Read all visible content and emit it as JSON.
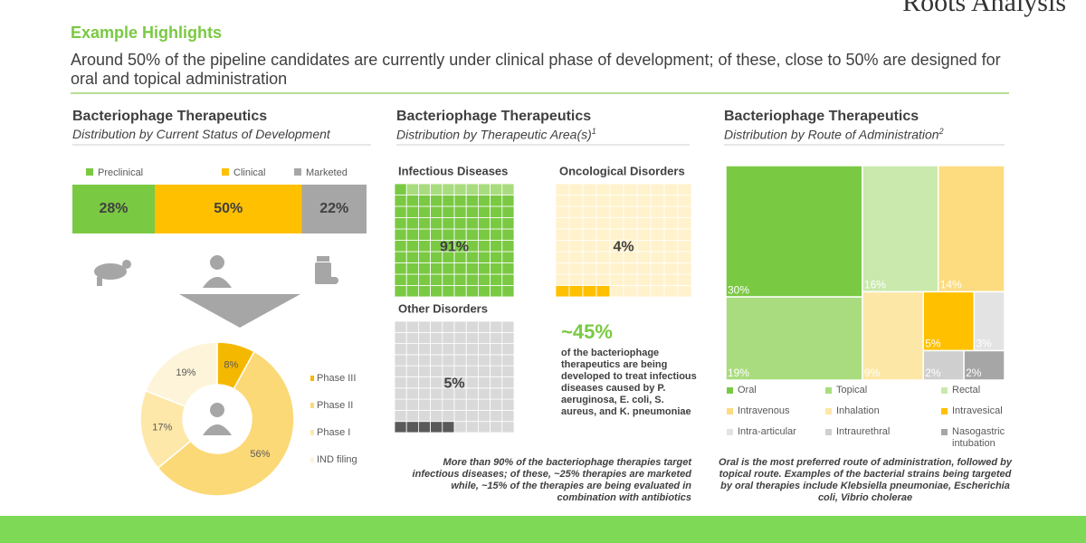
{
  "header": {
    "brand": "Roots Analysis",
    "title": "Example Highlights",
    "subtitle": "Around 50% of the pipeline candidates are currently under clinical phase of development; of these, close to 50% are designed for oral and topical administration"
  },
  "chart_data": [
    {
      "type": "stacked-bar",
      "title": "Bacteriophage Therapeutics",
      "subtitle": "Distribution by Current Status of Development",
      "categories": [
        "Preclinical",
        "Clinical",
        "Marketed"
      ],
      "values": [
        28,
        50,
        22
      ],
      "value_labels": [
        "28%",
        "50%",
        "22%"
      ],
      "colors": [
        "#7ac943",
        "#ffc000",
        "#a6a6a6"
      ]
    },
    {
      "type": "donut",
      "categories": [
        "Phase III",
        "Phase II",
        "Phase I",
        "IND filing"
      ],
      "values": [
        8,
        56,
        17,
        19
      ],
      "value_labels": [
        "8%",
        "56%",
        "17%",
        "19%"
      ],
      "colors": [
        "#f5b800",
        "#fcd977",
        "#fde8a9",
        "#fef4d9"
      ]
    },
    {
      "type": "waffle",
      "title": "Bacteriophage Therapeutics",
      "subtitle": "Distribution by Therapeutic Area(s)",
      "subtitle_note": "1",
      "categories": [
        "Infectious Diseases",
        "Oncological Disorders",
        "Other Disorders"
      ],
      "values": [
        91,
        4,
        5
      ],
      "value_labels": [
        "91%",
        "4%",
        "5%"
      ],
      "colors": [
        "#7ac943",
        "#ffc000",
        "#595959"
      ],
      "empty_colors": [
        "#a9dc7f",
        "#fff2cc",
        "#d9d9d9"
      ],
      "callout": {
        "value": 45,
        "label": "~45%",
        "text": "of the bacteriophage therapeutics are being developed to treat infectious diseases caused by P. aeruginosa, E. coli, S. aureus, and K. pneumoniae"
      },
      "footnote": "More than 90% of the bacteriophage therapies target infectious diseases; of these, ~25% therapies are marketed while, ~15% of the therapies are being evaluated in combination with antibiotics"
    },
    {
      "type": "treemap",
      "title": "Bacteriophage Therapeutics",
      "subtitle": "Distribution by Route of Administration",
      "subtitle_note": "2",
      "categories": [
        "Oral",
        "Topical",
        "Rectal",
        "Intravenous",
        "Inhalation",
        "Intravesical",
        "Intra-articular",
        "Intraurethral",
        "Nasogastric intubation"
      ],
      "values": [
        30,
        19,
        16,
        14,
        9,
        5,
        3,
        2,
        2
      ],
      "value_labels": [
        "30%",
        "19%",
        "16%",
        "14%",
        "9%",
        "5%",
        "3%",
        "2%",
        "2%"
      ],
      "colors": [
        "#7ac943",
        "#a9dc7f",
        "#c9e9ad",
        "#fddc80",
        "#fde7a6",
        "#ffc000",
        "#e3e3e3",
        "#cfcfcf",
        "#a6a6a6"
      ],
      "footnote": "Oral is the most preferred route of administration, followed by topical route. Examples of the bacterial strains being targeted by oral therapies include Klebsiella pneumoniae, Escherichia coli, Vibrio cholerae"
    }
  ]
}
